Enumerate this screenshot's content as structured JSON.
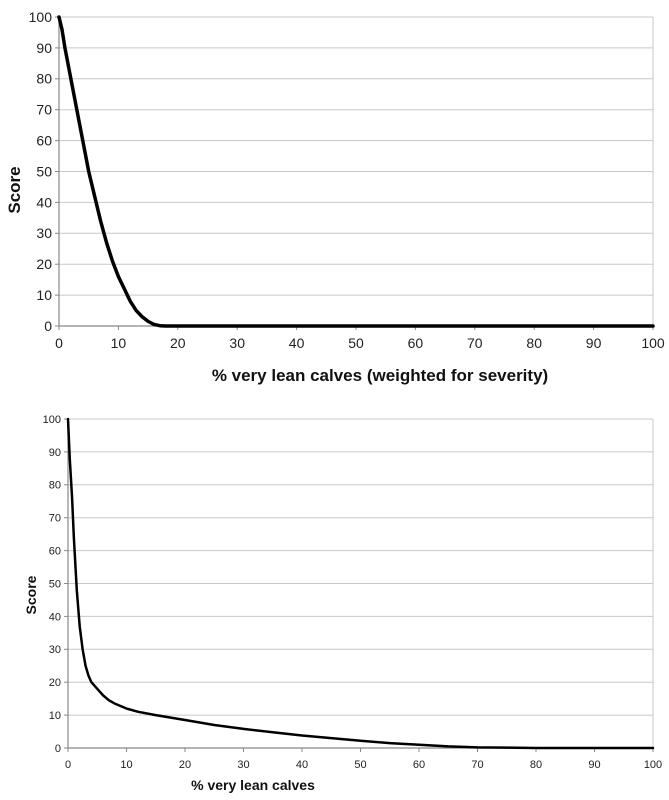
{
  "chart_data": [
    {
      "type": "line",
      "title": "",
      "xlabel": "% very lean calves  (weighted for severity)",
      "ylabel": "Score",
      "xlim": [
        0,
        100
      ],
      "ylim": [
        0,
        100
      ],
      "xticks": [
        0,
        10,
        20,
        30,
        40,
        50,
        60,
        70,
        80,
        90,
        100
      ],
      "yticks": [
        0,
        10,
        20,
        30,
        40,
        50,
        60,
        70,
        80,
        90,
        100
      ],
      "grid": true,
      "legend": "none",
      "line_color": "#000000",
      "series": [
        {
          "x": [
            0,
            0.5,
            1,
            2,
            3,
            4,
            5,
            6,
            7,
            8,
            9,
            10,
            11,
            12,
            13,
            14,
            15,
            16,
            17,
            18,
            20,
            30,
            40,
            50,
            60,
            70,
            80,
            90,
            100
          ],
          "values": [
            100,
            96,
            90,
            80,
            70,
            60,
            50,
            42,
            34,
            27,
            21,
            16,
            12,
            8,
            5,
            3,
            1.5,
            0.5,
            0.1,
            0,
            0,
            0,
            0,
            0,
            0,
            0,
            0,
            0,
            0
          ]
        }
      ]
    },
    {
      "type": "line",
      "title": "",
      "xlabel": "%  very lean calves",
      "ylabel": "Score",
      "xlim": [
        0,
        100
      ],
      "ylim": [
        0,
        100
      ],
      "xticks": [
        0,
        10,
        20,
        30,
        40,
        50,
        60,
        70,
        80,
        90,
        100
      ],
      "yticks": [
        0,
        10,
        20,
        30,
        40,
        50,
        60,
        70,
        80,
        90,
        100
      ],
      "grid": true,
      "legend": "none",
      "line_color": "#000000",
      "series": [
        {
          "x": [
            0,
            0.3,
            0.7,
            1,
            1.5,
            2,
            2.5,
            3,
            3.5,
            4,
            5,
            6,
            7,
            8,
            10,
            12,
            15,
            20,
            25,
            30,
            35,
            40,
            45,
            50,
            55,
            60,
            65,
            70,
            75,
            80,
            90,
            100
          ],
          "values": [
            100,
            88,
            76,
            64,
            48,
            37,
            30,
            25,
            22,
            20,
            18,
            16,
            14.5,
            13.5,
            12,
            11,
            10,
            8.5,
            7,
            5.8,
            4.8,
            3.8,
            3,
            2.2,
            1.5,
            1,
            0.5,
            0.2,
            0.1,
            0,
            0,
            0
          ]
        }
      ]
    }
  ]
}
